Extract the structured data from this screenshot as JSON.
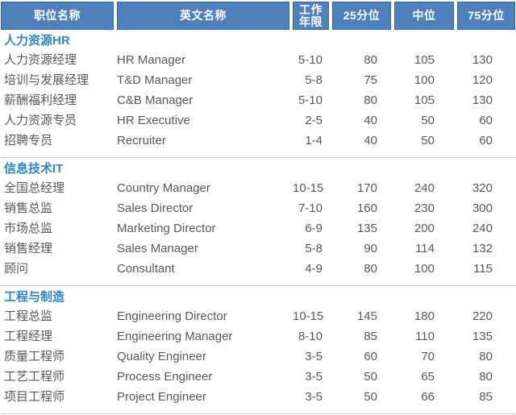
{
  "table": {
    "headers": {
      "job_title": "职位名称",
      "english_title": "英文名称",
      "years": "工作\n年限",
      "p25": "25分位",
      "median": "中位",
      "p75": "75分位"
    },
    "sections": [
      {
        "title": "人力资源HR",
        "rows": [
          {
            "title": "人力资源经理",
            "english": "HR Manager",
            "years": "5-10",
            "p25": "80",
            "median": "105",
            "p75": "130"
          },
          {
            "title": "培训与发展经理",
            "english": "T&D Manager",
            "years": "5-8",
            "p25": "75",
            "median": "100",
            "p75": "120"
          },
          {
            "title": "薪酬福利经理",
            "english": "C&B Manager",
            "years": "5-10",
            "p25": "80",
            "median": "105",
            "p75": "130"
          },
          {
            "title": "人力资源专员",
            "english": "HR Executive",
            "years": "2-5",
            "p25": "40",
            "median": "50",
            "p75": "60"
          },
          {
            "title": "招聘专员",
            "english": "Recruiter",
            "years": "1-4",
            "p25": "40",
            "median": "50",
            "p75": "60"
          }
        ]
      },
      {
        "title": "信息技术IT",
        "rows": [
          {
            "title": "全国总经理",
            "english": "Country Manager",
            "years": "10-15",
            "p25": "170",
            "median": "240",
            "p75": "320"
          },
          {
            "title": "销售总监",
            "english": "Sales Director",
            "years": "7-10",
            "p25": "160",
            "median": "230",
            "p75": "300"
          },
          {
            "title": "市场总监",
            "english": "Marketing Director",
            "years": "6-9",
            "p25": "135",
            "median": "200",
            "p75": "240"
          },
          {
            "title": "销售经理",
            "english": "Sales Manager",
            "years": "5-8",
            "p25": "90",
            "median": "114",
            "p75": "132"
          },
          {
            "title": "顾问",
            "english": "Consultant",
            "years": "4-9",
            "p25": "80",
            "median": "100",
            "p75": "115"
          }
        ]
      },
      {
        "title": "工程与制造",
        "rows": [
          {
            "title": "工程总监",
            "english": "Engineering Director",
            "years": "10-15",
            "p25": "145",
            "median": "180",
            "p75": "220"
          },
          {
            "title": "工程经理",
            "english": "Engineering Manager",
            "years": "8-10",
            "p25": "85",
            "median": "110",
            "p75": "135"
          },
          {
            "title": "质量工程师",
            "english": "Quality Engineer",
            "years": "3-5",
            "p25": "60",
            "median": "70",
            "p75": "80"
          },
          {
            "title": "工艺工程师",
            "english": "Process Engineer",
            "years": "3-5",
            "p25": "50",
            "median": "65",
            "p75": "80"
          },
          {
            "title": "项目工程师",
            "english": "Project Engineer",
            "years": "3-5",
            "p25": "50",
            "median": "66",
            "p75": "85"
          }
        ]
      }
    ],
    "colors": {
      "header_bg": "#4E80BC",
      "header_border": "#39689F",
      "header_text": "#FFFFFF",
      "section_title_text": "#2E86C6",
      "body_text": "#595959",
      "divider": "#CBCBCB"
    }
  },
  "chart_data": {
    "type": "table",
    "columns": [
      "职位名称",
      "英文名称",
      "工作年限",
      "25分位",
      "中位",
      "75分位"
    ],
    "rows": [
      [
        "人力资源经理",
        "HR Manager",
        "5-10",
        80,
        105,
        130
      ],
      [
        "培训与发展经理",
        "T&D Manager",
        "5-8",
        75,
        100,
        120
      ],
      [
        "薪酬福利经理",
        "C&B Manager",
        "5-10",
        80,
        105,
        130
      ],
      [
        "人力资源专员",
        "HR Executive",
        "2-5",
        40,
        50,
        60
      ],
      [
        "招聘专员",
        "Recruiter",
        "1-4",
        40,
        50,
        60
      ],
      [
        "全国总经理",
        "Country Manager",
        "10-15",
        170,
        240,
        320
      ],
      [
        "销售总监",
        "Sales Director",
        "7-10",
        160,
        230,
        300
      ],
      [
        "市场总监",
        "Marketing Director",
        "6-9",
        135,
        200,
        240
      ],
      [
        "销售经理",
        "Sales Manager",
        "5-8",
        90,
        114,
        132
      ],
      [
        "顾问",
        "Consultant",
        "4-9",
        80,
        100,
        115
      ],
      [
        "工程总监",
        "Engineering Director",
        "10-15",
        145,
        180,
        220
      ],
      [
        "工程经理",
        "Engineering Manager",
        "8-10",
        85,
        110,
        135
      ],
      [
        "质量工程师",
        "Quality Engineer",
        "3-5",
        60,
        70,
        80
      ],
      [
        "工艺工程师",
        "Process Engineer",
        "3-5",
        50,
        65,
        80
      ],
      [
        "项目工程师",
        "Project Engineer",
        "3-5",
        50,
        66,
        85
      ]
    ],
    "section_groups": [
      "人力资源HR",
      "信息技术IT",
      "工程与制造"
    ]
  }
}
